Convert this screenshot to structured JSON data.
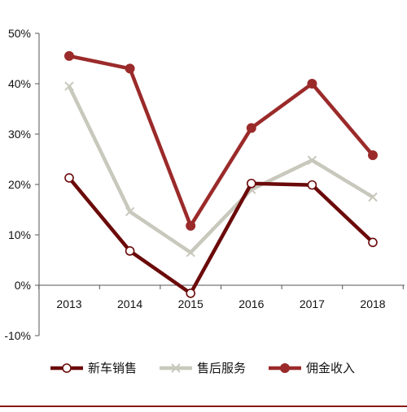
{
  "chart_data": {
    "type": "line",
    "categories": [
      "2013",
      "2014",
      "2015",
      "2016",
      "2017",
      "2018"
    ],
    "y_ticks": [
      "50%",
      "40%",
      "30%",
      "20%",
      "10%",
      "0%",
      "-10%"
    ],
    "ylim": [
      -10,
      50
    ],
    "grid": false,
    "legend_position": "bottom",
    "series": [
      {
        "name": "新车销售",
        "values": [
          21.3,
          6.8,
          -1.6,
          20.2,
          19.9,
          8.5
        ],
        "color": "#6b0a0a",
        "marker": "circle-open"
      },
      {
        "name": "售后服务",
        "values": [
          39.5,
          14.6,
          6.5,
          19.0,
          24.8,
          17.5
        ],
        "color": "#c8c8bd",
        "marker": "x"
      },
      {
        "name": "佣金收入",
        "values": [
          45.5,
          43.0,
          11.8,
          31.2,
          40.0,
          25.8
        ],
        "color": "#9b2a2a",
        "marker": "circle-filled"
      }
    ]
  }
}
